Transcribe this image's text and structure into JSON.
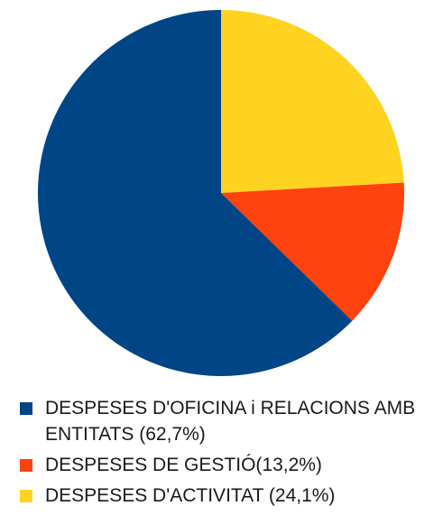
{
  "chart_data": {
    "type": "pie",
    "title": "",
    "legend_position": "bottom",
    "slices": [
      {
        "label": "DESPESES D'OFICINA i RELACIONS AMB ENTITATS (62,7%)",
        "value": 62.7,
        "color": "#004586"
      },
      {
        "label": "DESPESES DE GESTIÓ(13,2%)",
        "value": 13.2,
        "color": "#ff420e"
      },
      {
        "label": "DESPESES D'ACTIVITAT (24,1%)",
        "value": 24.1,
        "color": "#ffd320"
      }
    ]
  }
}
